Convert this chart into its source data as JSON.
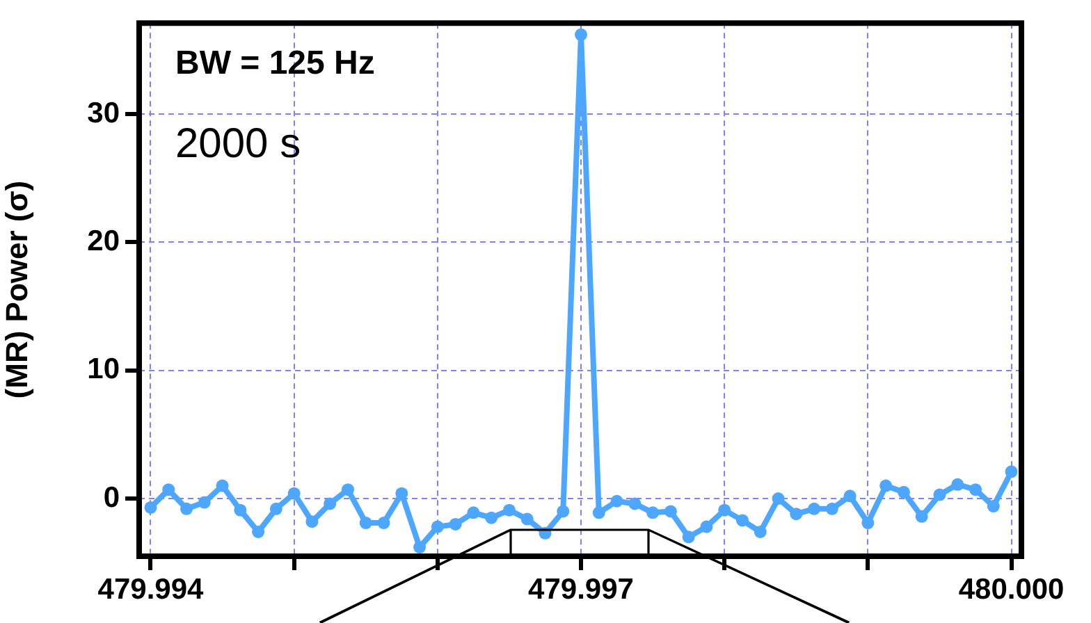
{
  "chart_data": {
    "type": "line",
    "ylabel": "(MR) Power (σ)",
    "annotations": [
      "BW = 125 Hz",
      "2000 s"
    ],
    "x": [
      479.994,
      479.994125,
      479.99425,
      479.994375,
      479.9945,
      479.994625,
      479.99475,
      479.994875,
      479.995,
      479.995125,
      479.99525,
      479.995375,
      479.9955,
      479.995625,
      479.99575,
      479.995875,
      479.996,
      479.996125,
      479.99625,
      479.996375,
      479.9965,
      479.996625,
      479.99675,
      479.996875,
      479.997,
      479.997125,
      479.99725,
      479.997375,
      479.9975,
      479.997625,
      479.99775,
      479.997875,
      479.998,
      479.998125,
      479.99825,
      479.998375,
      479.9985,
      479.998625,
      479.99875,
      479.998875,
      479.999,
      479.999125,
      479.99925,
      479.999375,
      479.9995,
      479.999625,
      479.99975,
      479.999875,
      480.0
    ],
    "series": [
      {
        "color": "#4da6ff",
        "values": [
          -0.7,
          0.7,
          -0.8,
          -0.3,
          1.0,
          -0.9,
          -2.6,
          -0.8,
          0.4,
          -1.8,
          -0.4,
          0.7,
          -1.9,
          -1.9,
          0.4,
          -3.8,
          -2.2,
          -2.0,
          -1.1,
          -1.5,
          -0.9,
          -1.6,
          -2.7,
          -1.0,
          36.2,
          -1.1,
          -0.2,
          -0.4,
          -1.1,
          -1.0,
          -3.0,
          -2.2,
          -0.9,
          -1.7,
          -2.6,
          0,
          -1.2,
          -0.8,
          -0.8,
          0.2,
          -1.9,
          1.0,
          0.5,
          -1.4,
          0.3,
          1.1,
          0.7,
          -0.6,
          2.1
        ]
      }
    ],
    "xlim": [
      479.99392,
      480.00007
    ],
    "ylim": [
      -4.5,
      37.1
    ],
    "xticks": [
      479.994,
      {
        "value": 479.995,
        "label": null
      },
      {
        "value": 479.996,
        "label": null
      },
      479.997,
      {
        "value": 479.998,
        "label": null
      },
      {
        "value": 479.999,
        "label": null
      },
      {
        "value": 480.0,
        "label": "480.000"
      }
    ],
    "yticks": [
      0,
      10,
      20,
      30
    ],
    "grid": true,
    "marker": "circle",
    "line_style": "solid",
    "legend": false
  }
}
